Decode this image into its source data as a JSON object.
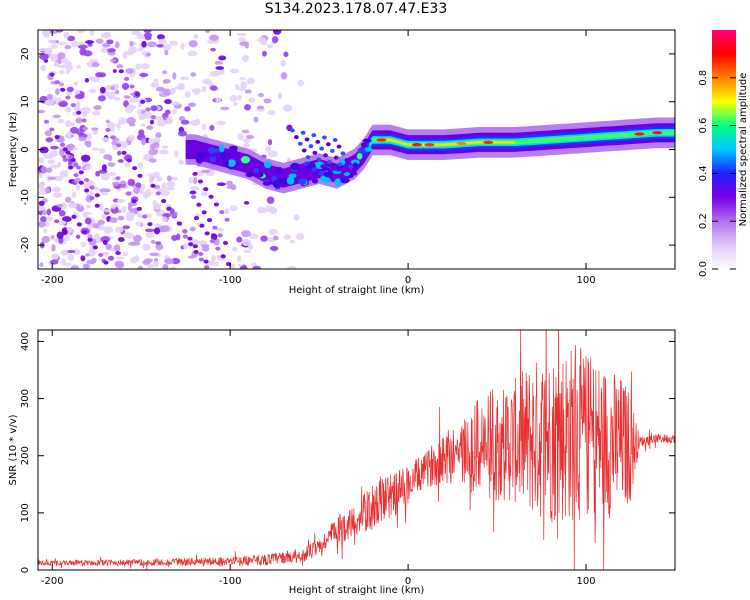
{
  "title": "S134.2023.178.07.47.E33",
  "chart_data": [
    {
      "type": "heatmap",
      "xlabel": "Height of straight line (km)",
      "ylabel": "Frequency (Hz)",
      "xlim": [
        -208,
        150
      ],
      "ylim": [
        -25,
        25
      ],
      "xticks": [
        -200,
        -100,
        0,
        100
      ],
      "yticks": [
        -20,
        -10,
        0,
        10,
        20
      ],
      "colorbar": {
        "label": "Normalized spectral amplitude",
        "range": [
          0,
          1
        ],
        "ticks": [
          "0.0",
          "0.2",
          "0.4",
          "0.6",
          "0.8"
        ],
        "colormap": [
          "#ffffff",
          "#e0c8f8",
          "#b070f0",
          "#7a00e8",
          "#2020ff",
          "#00c8ff",
          "#00ff80",
          "#ffff00",
          "#ff8000",
          "#ff0000",
          "#ff0078"
        ]
      },
      "ridge": {
        "x": [
          -120,
          -110,
          -100,
          -90,
          -80,
          -70,
          -60,
          -50,
          -40,
          -30,
          -25,
          -20,
          -10,
          0,
          10,
          20,
          40,
          60,
          80,
          100,
          120,
          140,
          150
        ],
        "y": [
          0,
          -1,
          -2,
          -3,
          -5,
          -6,
          -5,
          -4,
          -5,
          -3,
          -1,
          2,
          2,
          1,
          1,
          1,
          1.5,
          1.5,
          2,
          2.5,
          3,
          3.5,
          3.5
        ]
      },
      "grid": false
    },
    {
      "type": "line",
      "xlabel": "Height of straight line (km)",
      "ylabel": "SNR (10 * v/v)",
      "xlim": [
        -208,
        150
      ],
      "ylim": [
        0,
        420
      ],
      "xticks": [
        -200,
        -100,
        0,
        100
      ],
      "yticks": [
        0,
        100,
        200,
        300,
        400
      ],
      "line_color": "#e83030",
      "envelope": {
        "x": [
          -208,
          -150,
          -100,
          -80,
          -60,
          -50,
          -40,
          -30,
          -20,
          -10,
          0,
          10,
          20,
          30,
          40,
          50,
          60,
          70,
          80,
          90,
          100,
          110,
          120,
          125,
          130,
          140,
          150
        ],
        "mean": [
          12,
          13,
          15,
          18,
          25,
          40,
          70,
          85,
          110,
          130,
          150,
          175,
          200,
          205,
          215,
          220,
          225,
          230,
          230,
          240,
          235,
          225,
          220,
          215,
          225,
          230,
          230
        ],
        "spread": [
          4,
          6,
          8,
          10,
          12,
          15,
          25,
          30,
          40,
          40,
          35,
          30,
          50,
          60,
          90,
          100,
          110,
          140,
          150,
          160,
          150,
          140,
          120,
          100,
          10,
          8,
          8
        ]
      },
      "grid": false
    }
  ]
}
